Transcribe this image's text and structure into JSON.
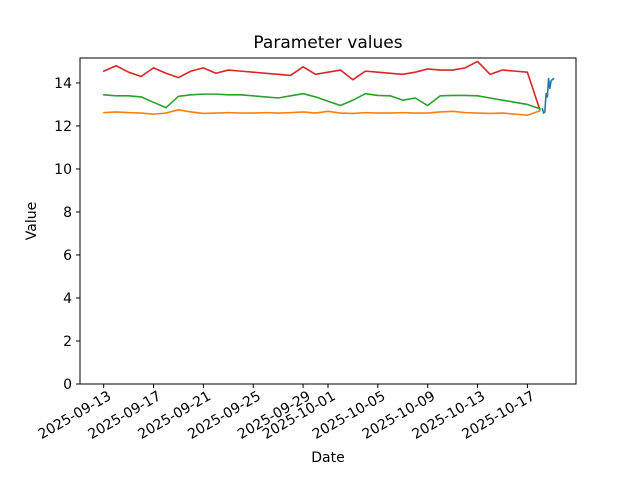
{
  "chart_data": {
    "type": "line",
    "title": "Parameter values",
    "xlabel": "Date",
    "ylabel": "Value",
    "grid": false,
    "legend": "none",
    "background_color": "#ffffff",
    "axis_color": "#000000",
    "x_unit": "days since 2025-09-13",
    "xlim": [
      -1.9,
      37.9
    ],
    "ylim": [
      0,
      15.16
    ],
    "y_ticks": [
      0,
      2,
      4,
      6,
      8,
      10,
      12,
      14
    ],
    "x_tick_positions": [
      0,
      4,
      8,
      12,
      16,
      18,
      22,
      26,
      30,
      34
    ],
    "x_tick_labels": [
      "2025-09-13",
      "2025-09-17",
      "2025-09-21",
      "2025-09-25",
      "2025-09-29",
      "2025-10-01",
      "2025-10-05",
      "2025-10-09",
      "2025-10-13",
      "2025-10-17"
    ],
    "series": [
      {
        "name": "red",
        "color": "#d62728",
        "x": [
          0,
          1,
          2,
          3,
          4,
          5,
          6,
          7,
          8,
          9,
          10,
          11,
          12,
          13,
          14,
          15,
          16,
          17,
          18,
          19,
          20,
          21,
          22,
          23,
          24,
          25,
          26,
          27,
          28,
          29,
          30,
          31,
          32,
          33,
          34,
          35
        ],
        "y": [
          14.55,
          14.8,
          14.5,
          14.3,
          14.7,
          14.45,
          14.25,
          14.55,
          14.7,
          14.45,
          14.6,
          14.55,
          14.5,
          14.45,
          14.4,
          14.35,
          14.75,
          14.4,
          14.5,
          14.6,
          14.15,
          14.55,
          14.5,
          14.45,
          14.4,
          14.5,
          14.65,
          14.6,
          14.6,
          14.7,
          15.0,
          14.4,
          14.6,
          14.55,
          14.5,
          12.75
        ]
      },
      {
        "name": "green",
        "color": "#2ca02c",
        "x": [
          0,
          1,
          2,
          3,
          4,
          5,
          6,
          7,
          8,
          9,
          10,
          11,
          12,
          13,
          14,
          15,
          16,
          17,
          18,
          19,
          20,
          21,
          22,
          23,
          24,
          25,
          26,
          27,
          28,
          29,
          30,
          31,
          32,
          33,
          34,
          35
        ],
        "y": [
          13.45,
          13.4,
          13.4,
          13.35,
          13.1,
          12.85,
          13.38,
          13.45,
          13.48,
          13.48,
          13.45,
          13.45,
          13.4,
          13.35,
          13.3,
          13.4,
          13.5,
          13.35,
          13.15,
          12.95,
          13.2,
          13.5,
          13.42,
          13.4,
          13.2,
          13.3,
          12.95,
          13.4,
          13.42,
          13.42,
          13.4,
          13.3,
          13.2,
          13.1,
          13.0,
          12.8
        ]
      },
      {
        "name": "orange",
        "color": "#ff7f0e",
        "x": [
          0,
          1,
          2,
          3,
          4,
          5,
          6,
          7,
          8,
          9,
          10,
          11,
          12,
          13,
          14,
          15,
          16,
          17,
          18,
          19,
          20,
          21,
          22,
          23,
          24,
          25,
          26,
          27,
          28,
          29,
          30,
          31,
          32,
          33,
          34,
          35
        ],
        "y": [
          12.62,
          12.65,
          12.62,
          12.6,
          12.55,
          12.6,
          12.75,
          12.65,
          12.58,
          12.6,
          12.62,
          12.6,
          12.6,
          12.62,
          12.6,
          12.62,
          12.65,
          12.6,
          12.68,
          12.6,
          12.58,
          12.62,
          12.6,
          12.6,
          12.62,
          12.6,
          12.6,
          12.65,
          12.68,
          12.62,
          12.6,
          12.58,
          12.6,
          12.55,
          12.5,
          12.7
        ]
      },
      {
        "name": "blue",
        "color": "#1f77b4",
        "x": [
          35.2,
          35.3,
          35.4,
          35.5,
          35.6,
          35.7,
          35.8,
          35.9,
          36.1
        ],
        "y": [
          12.8,
          12.6,
          12.65,
          13.5,
          13.35,
          14.2,
          13.75,
          14.1,
          14.2
        ]
      }
    ]
  }
}
